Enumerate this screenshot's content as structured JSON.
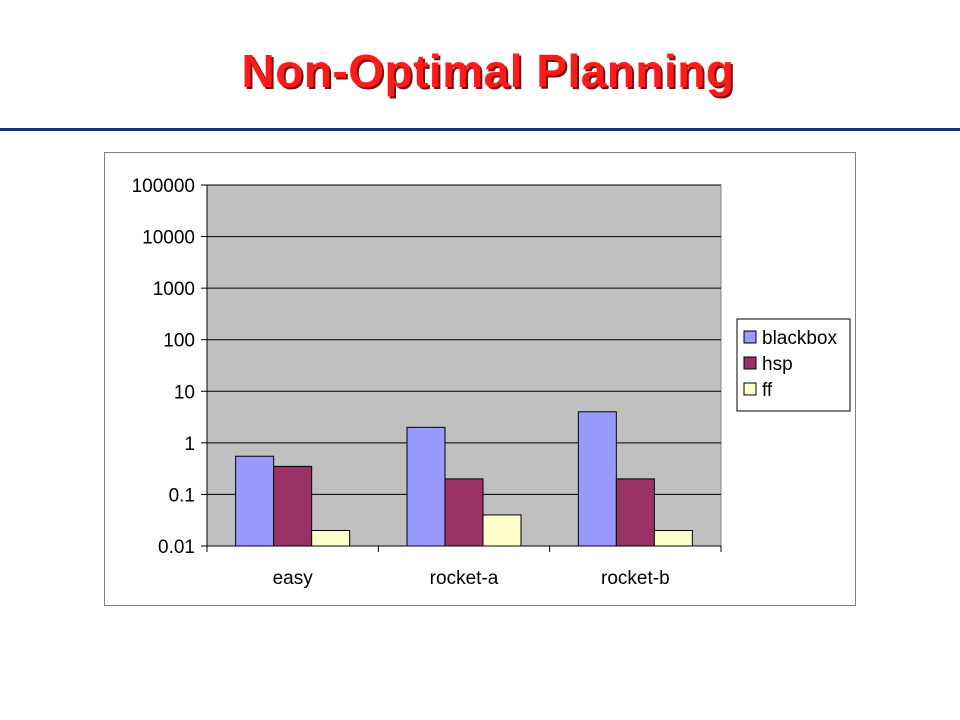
{
  "slide": {
    "title": "Non-Optimal Planning",
    "title_color": "#ff1a1a",
    "rule_color": "#1c2f7a"
  },
  "chart_data": {
    "type": "bar",
    "y_scale": "log",
    "ylim": [
      0.01,
      100000
    ],
    "y_ticks": [
      "100000",
      "10000",
      "1000",
      "100",
      "10",
      "1",
      "0.1",
      "0.01"
    ],
    "y_tick_values": [
      100000,
      10000,
      1000,
      100,
      10,
      1,
      0.1,
      0.01
    ],
    "categories": [
      "easy",
      "rocket-a",
      "rocket-b"
    ],
    "series": [
      {
        "name": "blackbox",
        "color": "#9999ff",
        "values": [
          0.55,
          2,
          4
        ]
      },
      {
        "name": "hsp",
        "color": "#993366",
        "values": [
          0.35,
          0.2,
          0.2
        ]
      },
      {
        "name": "ff",
        "color": "#ffffcc",
        "values": [
          0.02,
          0.04,
          0.02
        ]
      }
    ],
    "plot_background": "#c0c0c0",
    "grid": true,
    "legend_position": "right"
  }
}
